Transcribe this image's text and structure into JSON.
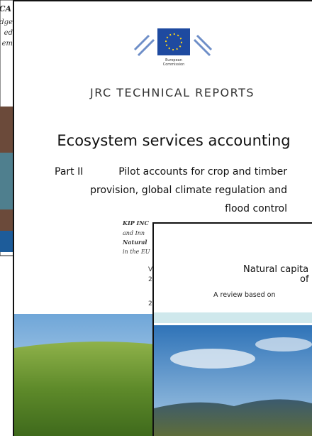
{
  "back_cover": {
    "lines": [
      "CA",
      "dge",
      "ed",
      "em"
    ]
  },
  "middle_cover": {
    "logo_caption": [
      "European",
      "Commission"
    ],
    "series": "JRC TECHNICAL REPORTS",
    "title": "Ecosystem services accounting",
    "part": "Part II",
    "subtitle_lines": [
      "Pilot accounts for crop and timber",
      "provision, global climate regulation and",
      "flood control"
    ],
    "authors_lines": [
      "KIP INC",
      "and Inn",
      "Natural",
      "in the EU"
    ],
    "info_lines": [
      "V",
      "2",
      "2"
    ]
  },
  "front_cover": {
    "title_lines": [
      "Natural capita",
      "of"
    ],
    "subtitle": "A review based on"
  }
}
